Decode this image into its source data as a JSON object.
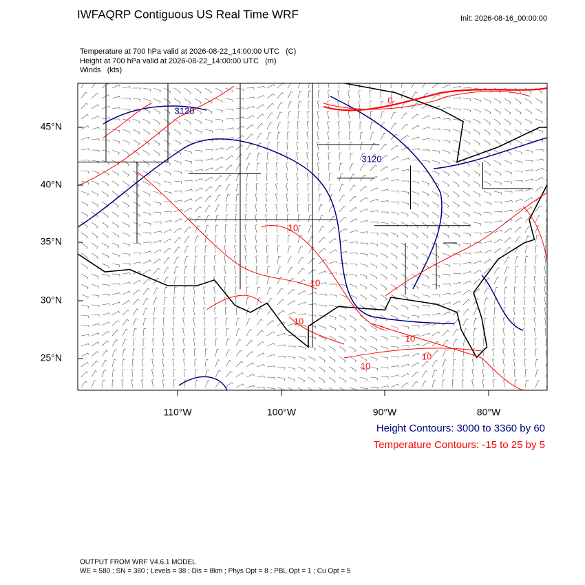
{
  "header": {
    "title": "IWFAQRP Contiguous US Real Time WRF",
    "init": "Init: 2026-08-16_00:00:00"
  },
  "fields": [
    "Temperature at 700 hPa valid at 2026-08-22_14:00:00 UTC   (C)",
    "Height at 700 hPa valid at 2026-08-22_14:00:00 UTC   (m)",
    "Winds   (kts)"
  ],
  "map": {
    "lat_labels": [
      "45°N",
      "40°N",
      "35°N",
      "30°N",
      "25°N"
    ],
    "lon_labels": [
      "110°W",
      "100°W",
      "90°W",
      "80°W"
    ],
    "contour_labels": [
      "3120",
      "3120",
      "0",
      "10",
      "10",
      "10",
      "10",
      "10",
      "10"
    ]
  },
  "legend": {
    "height": "Height Contours: 3000 to 3360 by 60",
    "temperature": "Temperature Contours: -15 to 25 by 5"
  },
  "footer": [
    "OUTPUT FROM WRF V4.6.1 MODEL",
    "WE = 580 ; SN = 380 ; Levels = 38 ; Dis = 8km ; Phys Opt = 8 ; PBL Opt = 1 ; Cu Opt = 5"
  ]
}
